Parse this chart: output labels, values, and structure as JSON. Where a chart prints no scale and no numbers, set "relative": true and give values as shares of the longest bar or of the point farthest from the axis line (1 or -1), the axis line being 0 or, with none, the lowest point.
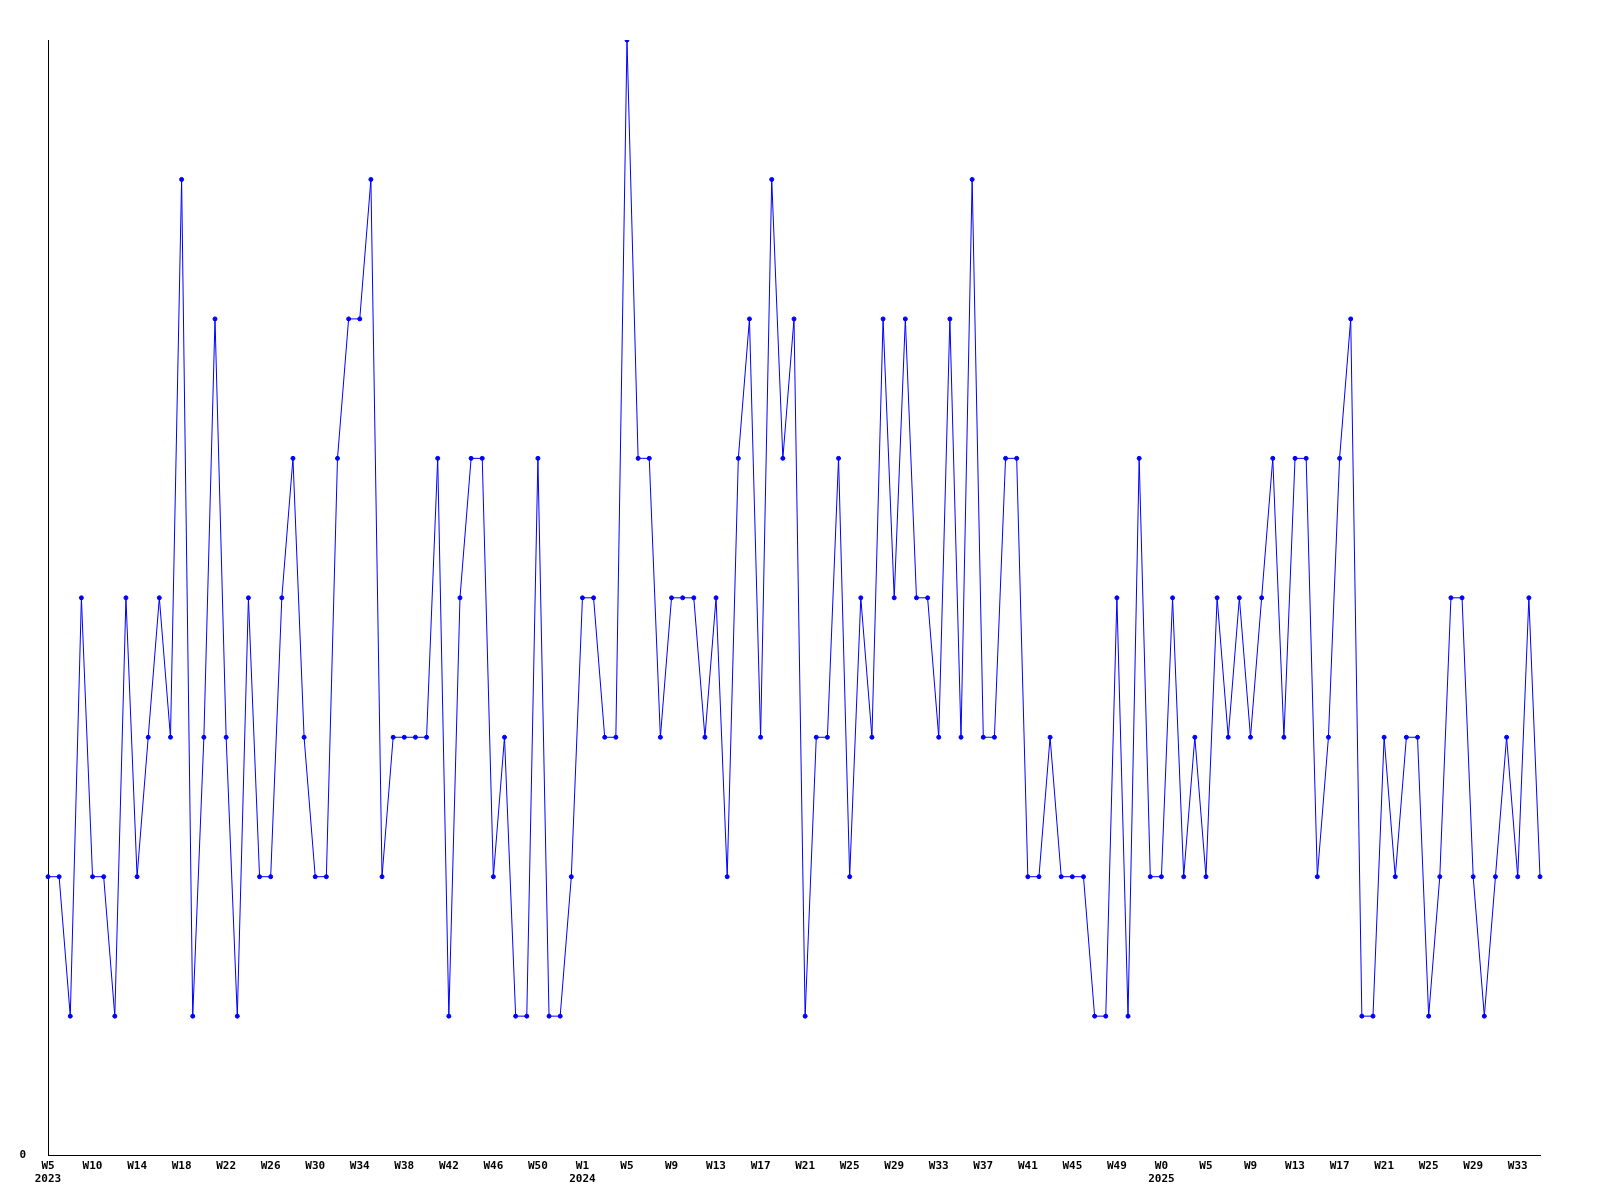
{
  "chart_data": {
    "type": "line",
    "relative": true,
    "marker": "circle",
    "grid": false,
    "legend": false,
    "annotations": [
      "0"
    ],
    "categories": [
      "W5\n2023",
      null,
      null,
      null,
      "W10",
      null,
      null,
      null,
      "W14",
      null,
      null,
      null,
      "W18",
      null,
      null,
      null,
      "W22",
      null,
      null,
      null,
      "W26",
      null,
      null,
      null,
      "W30",
      null,
      null,
      null,
      "W34",
      null,
      null,
      null,
      "W38",
      null,
      null,
      null,
      "W42",
      null,
      null,
      null,
      "W46",
      null,
      null,
      null,
      "W50",
      null,
      null,
      null,
      "W1\n2024",
      null,
      null,
      null,
      "W5",
      null,
      null,
      null,
      "W9",
      null,
      null,
      null,
      "W13",
      null,
      null,
      null,
      "W17",
      null,
      null,
      null,
      "W21",
      null,
      null,
      null,
      "W25",
      null,
      null,
      null,
      "W29",
      null,
      null,
      null,
      "W33",
      null,
      null,
      null,
      "W37",
      null,
      null,
      null,
      "W41",
      null,
      null,
      null,
      "W45",
      null,
      null,
      null,
      "W49",
      null,
      null,
      null,
      "W0\n2025",
      null,
      null,
      null,
      "W5",
      null,
      null,
      null,
      "W9",
      null,
      null,
      null,
      "W13",
      null,
      null,
      null,
      "W17",
      null,
      null,
      null,
      "W21",
      null,
      null,
      null,
      "W25",
      null,
      null,
      null,
      "W29",
      null,
      null,
      null,
      "W33",
      null,
      null
    ],
    "series": [
      {
        "color": "#0000ff",
        "values": [
          0.25,
          0.25,
          0.125,
          0.5,
          0.25,
          0.25,
          0.125,
          0.5,
          0.25,
          0.375,
          0.5,
          0.375,
          0.875,
          0.125,
          0.375,
          0.75,
          0.375,
          0.125,
          0.5,
          0.25,
          0.25,
          0.5,
          0.625,
          0.375,
          0.25,
          0.25,
          0.625,
          0.75,
          0.75,
          0.875,
          0.25,
          0.375,
          0.375,
          0.375,
          0.375,
          0.625,
          0.125,
          0.5,
          0.625,
          0.625,
          0.25,
          0.375,
          0.125,
          0.125,
          0.625,
          0.125,
          0.125,
          0.25,
          0.5,
          0.5,
          0.375,
          0.375,
          1,
          0.625,
          0.625,
          0.375,
          0.5,
          0.5,
          0.5,
          0.375,
          0.5,
          0.25,
          0.625,
          0.75,
          0.375,
          0.875,
          0.625,
          0.75,
          0.125,
          0.375,
          0.375,
          0.625,
          0.25,
          0.5,
          0.375,
          0.75,
          0.5,
          0.75,
          0.5,
          0.5,
          0.375,
          0.75,
          0.375,
          0.875,
          0.375,
          0.375,
          0.625,
          0.625,
          0.25,
          0.25,
          0.375,
          0.25,
          0.25,
          0.25,
          0.125,
          0.125,
          0.5,
          0.125,
          0.625,
          0.25,
          0.25,
          0.5,
          0.25,
          0.375,
          0.25,
          0.5,
          0.375,
          0.5,
          0.375,
          0.5,
          0.625,
          0.375,
          0.625,
          0.625,
          0.25,
          0.375,
          0.625,
          0.75,
          0.125,
          0.125,
          0.375,
          0.25,
          0.375,
          0.375,
          0.125,
          0.25,
          0.5,
          0.5,
          0.25,
          0.125,
          0.25,
          0.375,
          0.25,
          0.5,
          0.25
        ]
      }
    ]
  }
}
